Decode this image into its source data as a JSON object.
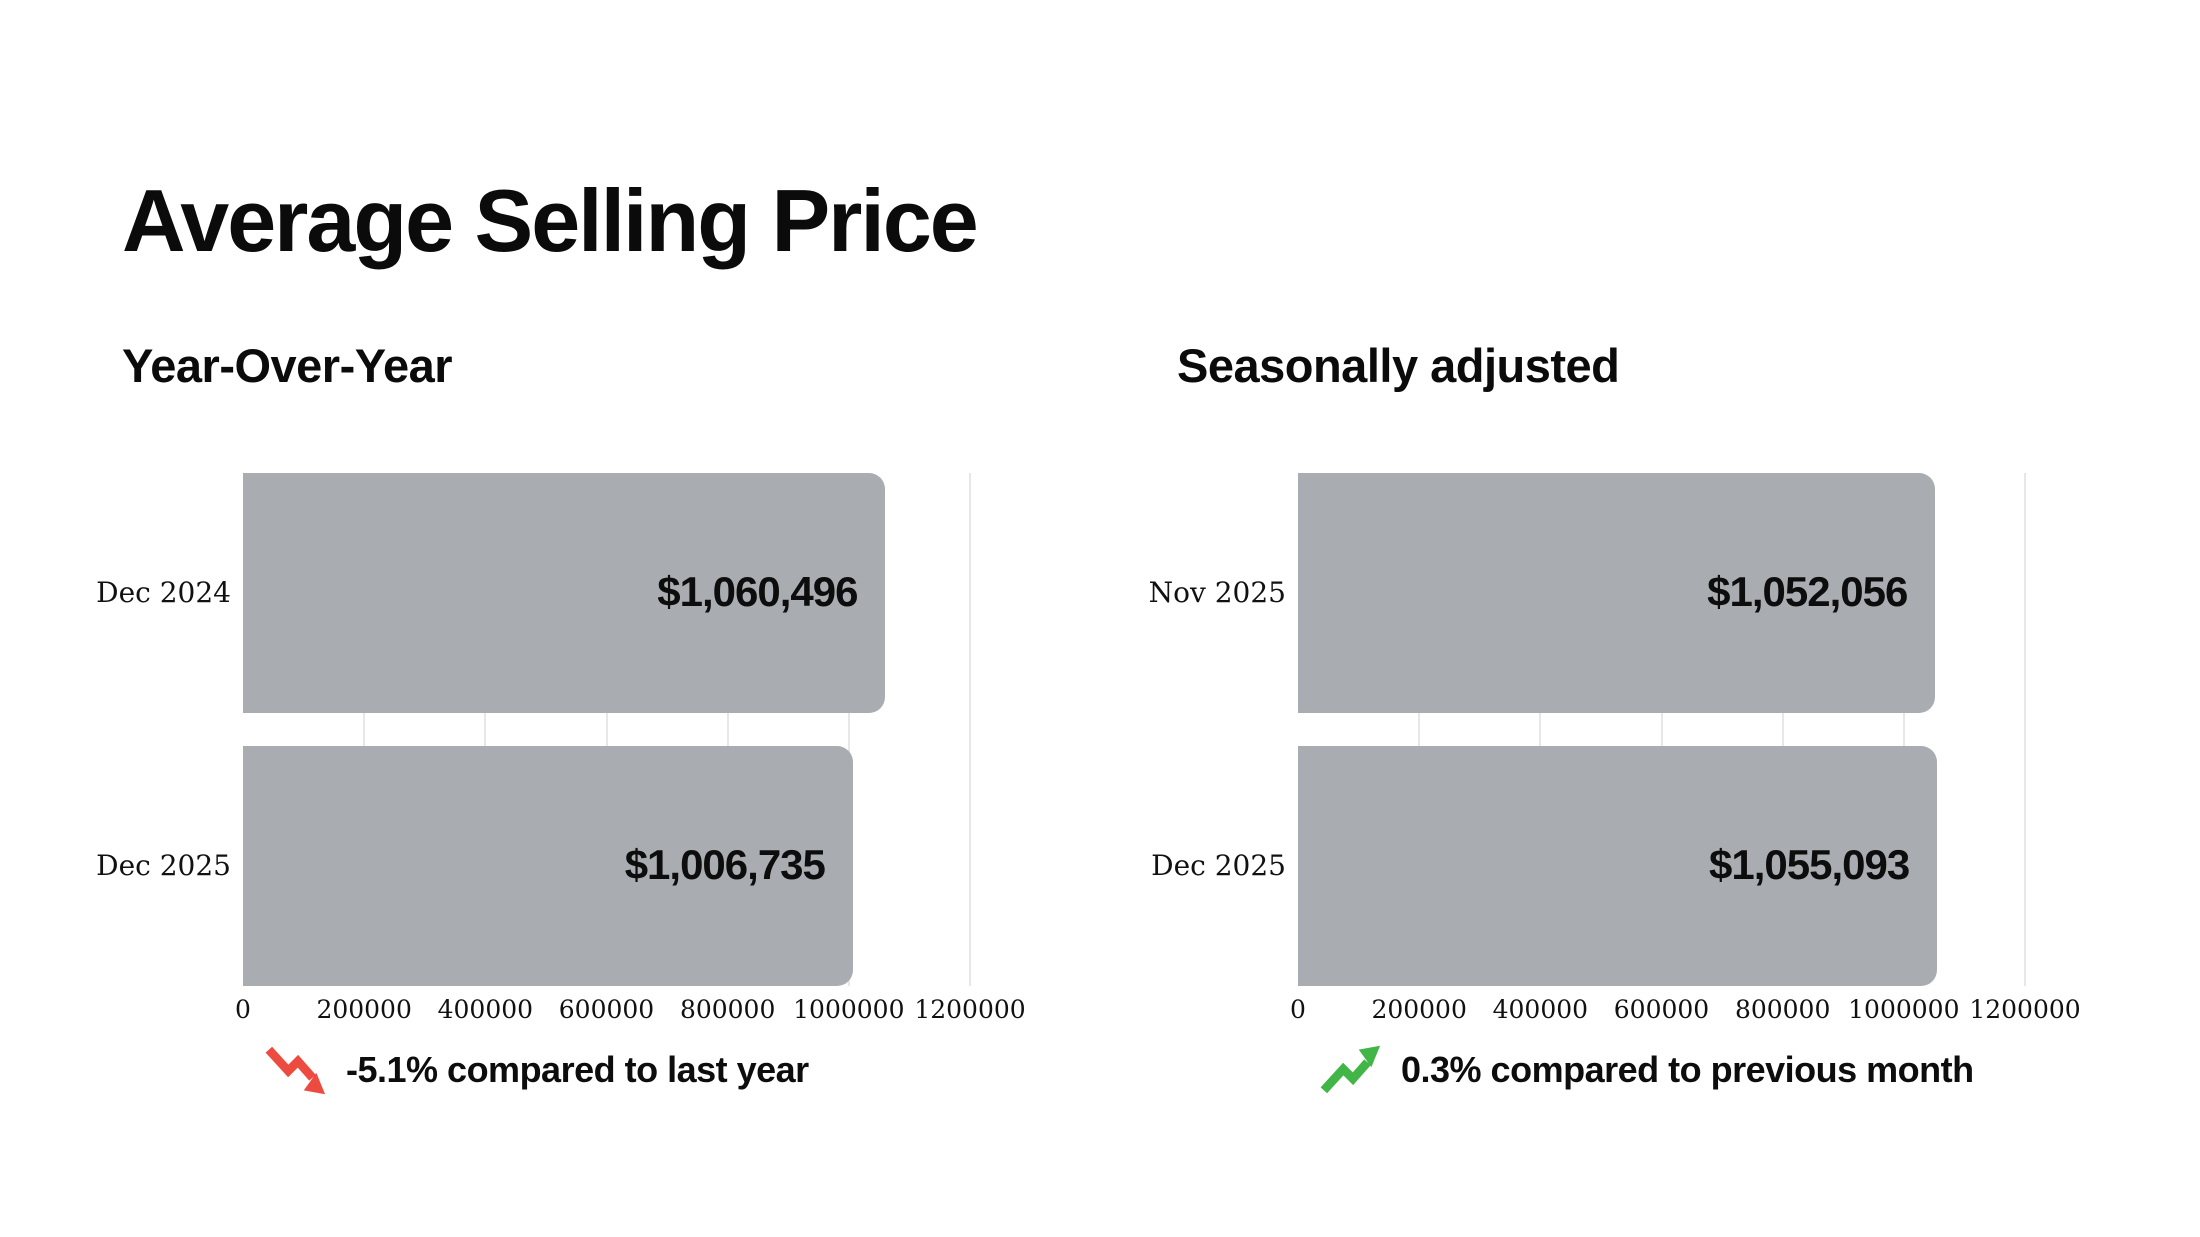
{
  "page": {
    "title": "Average Selling Price"
  },
  "chart_data": [
    {
      "type": "bar",
      "orientation": "horizontal",
      "title": "Year-Over-Year",
      "categories": [
        "Dec 2024",
        "Dec 2025"
      ],
      "values": [
        1060496,
        1006735
      ],
      "value_labels": [
        "$1,060,496",
        "$1,006,735"
      ],
      "xlim": [
        0,
        1200000
      ],
      "x_ticks": [
        0,
        200000,
        400000,
        600000,
        800000,
        1000000,
        1200000
      ],
      "x_tick_labels": [
        "0",
        "200000",
        "400000",
        "600000",
        "800000",
        "1000000",
        "1200000"
      ],
      "grid": "vertical-light",
      "legend": "none",
      "bar_color": "#a9adb1",
      "grid_color": "#e7e7e7",
      "annotation": {
        "icon": "trend-down-arrow",
        "color": "#ee4b40",
        "text": "-5.1% compared to last year"
      }
    },
    {
      "type": "bar",
      "orientation": "horizontal",
      "title": "Seasonally adjusted",
      "categories": [
        "Nov 2025",
        "Dec 2025"
      ],
      "values": [
        1052056,
        1055093
      ],
      "value_labels": [
        "$1,052,056",
        "$1,055,093"
      ],
      "xlim": [
        0,
        1200000
      ],
      "x_ticks": [
        0,
        200000,
        400000,
        600000,
        800000,
        1000000,
        1200000
      ],
      "x_tick_labels": [
        "0",
        "200000",
        "400000",
        "600000",
        "800000",
        "1000000",
        "1200000"
      ],
      "grid": "vertical-light",
      "legend": "none",
      "bar_color": "#a9adb1",
      "grid_color": "#e7e7e7",
      "annotation": {
        "icon": "trend-up-arrow",
        "color": "#41b546",
        "text": "0.3% compared to previous month"
      }
    }
  ]
}
